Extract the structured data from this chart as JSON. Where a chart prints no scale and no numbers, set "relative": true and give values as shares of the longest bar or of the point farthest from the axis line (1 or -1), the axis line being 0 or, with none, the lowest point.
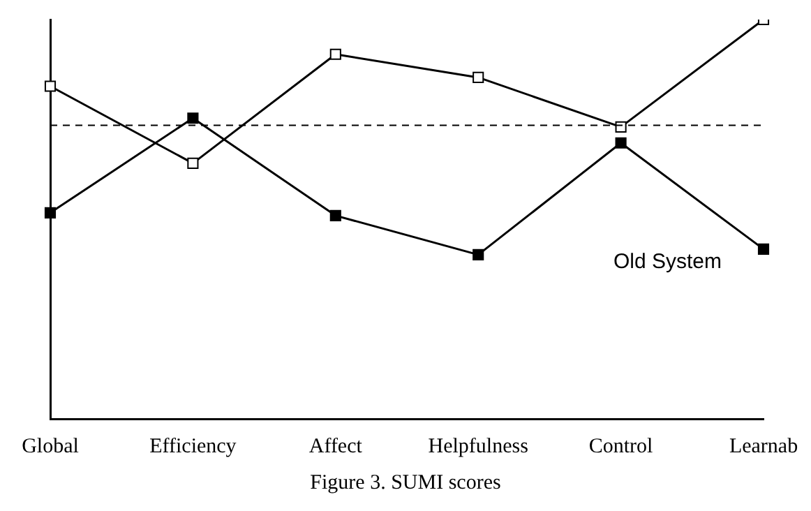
{
  "chart_data": {
    "type": "line",
    "relative": true,
    "categories": [
      "Global",
      "Efficiency",
      "Affect",
      "Helpfulness",
      "Control",
      "Learnab"
    ],
    "series": [
      {
        "color": "#000000",
        "values": [
          0.833,
          0.64,
          0.913,
          0.855,
          0.731,
          1
        ]
      },
      {
        "name": "Old System",
        "color": "#000000",
        "values": [
          0.516,
          0.753,
          0.509,
          0.411,
          0.691,
          0.425
        ]
      }
    ],
    "ref_lines": [
      {
        "axis": "y",
        "value": 0.735,
        "line_style": "dashed",
        "color": "#000000"
      }
    ],
    "annotations": [
      "Figure 3.  SUMI scores"
    ],
    "marker": "square",
    "line_style": "solid",
    "grid": false,
    "legend": false
  }
}
